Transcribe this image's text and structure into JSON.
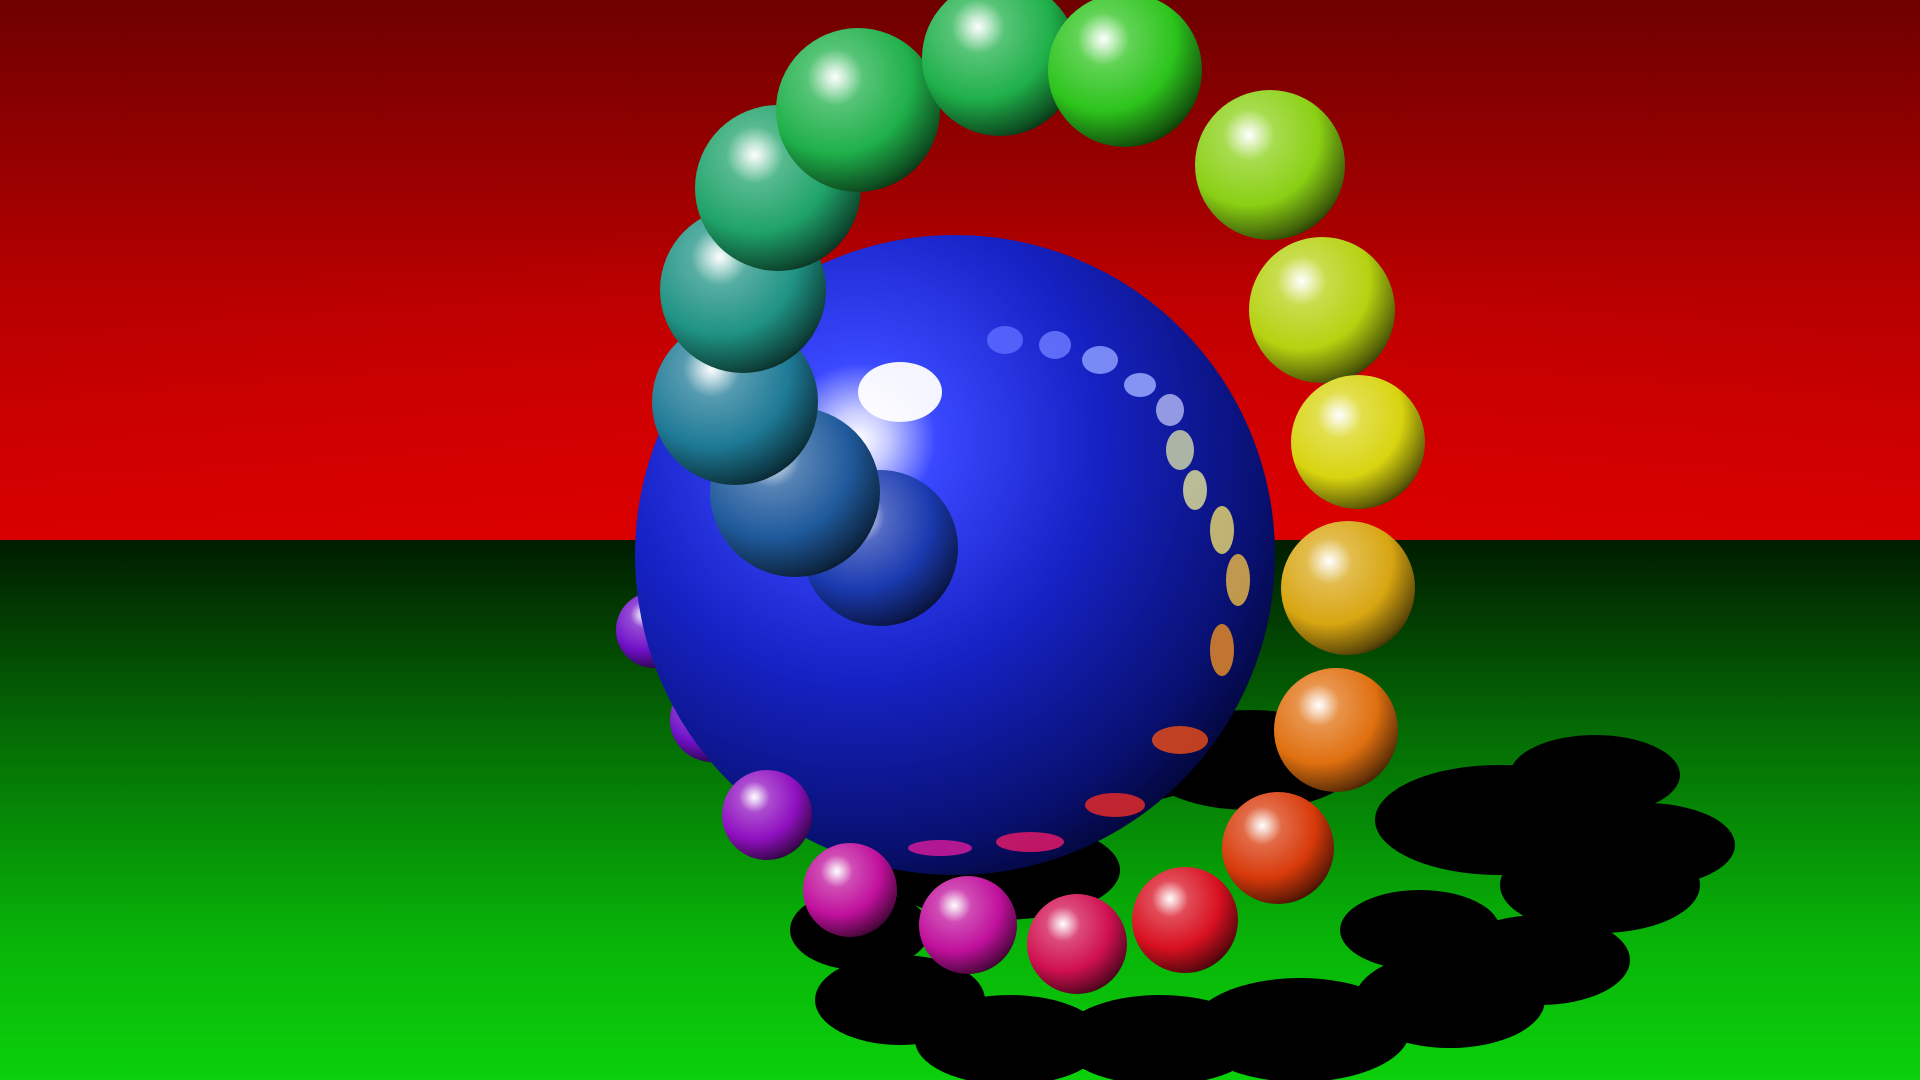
{
  "scene": {
    "description_free": true,
    "colors": {
      "wall_top": "#6e0000",
      "wall_mid": "#c80000",
      "wall_bottom": "#e60000",
      "floor_far": "#002400",
      "floor_mid": "#04a004",
      "floor_near": "#0acd0a",
      "central_sphere": "#1520c8",
      "central_sphere_dark": "#020a48",
      "shadow": "#000000"
    },
    "ring_spheres": [
      {
        "hue": "blue"
      },
      {
        "hue": "steel-blue"
      },
      {
        "hue": "teal-blue"
      },
      {
        "hue": "teal"
      },
      {
        "hue": "sea-green"
      },
      {
        "hue": "green"
      },
      {
        "hue": "green"
      },
      {
        "hue": "bright-green"
      },
      {
        "hue": "yellow-green"
      },
      {
        "hue": "lime"
      },
      {
        "hue": "yellow"
      },
      {
        "hue": "gold"
      },
      {
        "hue": "orange"
      },
      {
        "hue": "red-orange"
      },
      {
        "hue": "red"
      },
      {
        "hue": "crimson"
      },
      {
        "hue": "magenta"
      },
      {
        "hue": "magenta"
      },
      {
        "hue": "purple"
      },
      {
        "hue": "violet"
      },
      {
        "hue": "violet"
      }
    ]
  }
}
